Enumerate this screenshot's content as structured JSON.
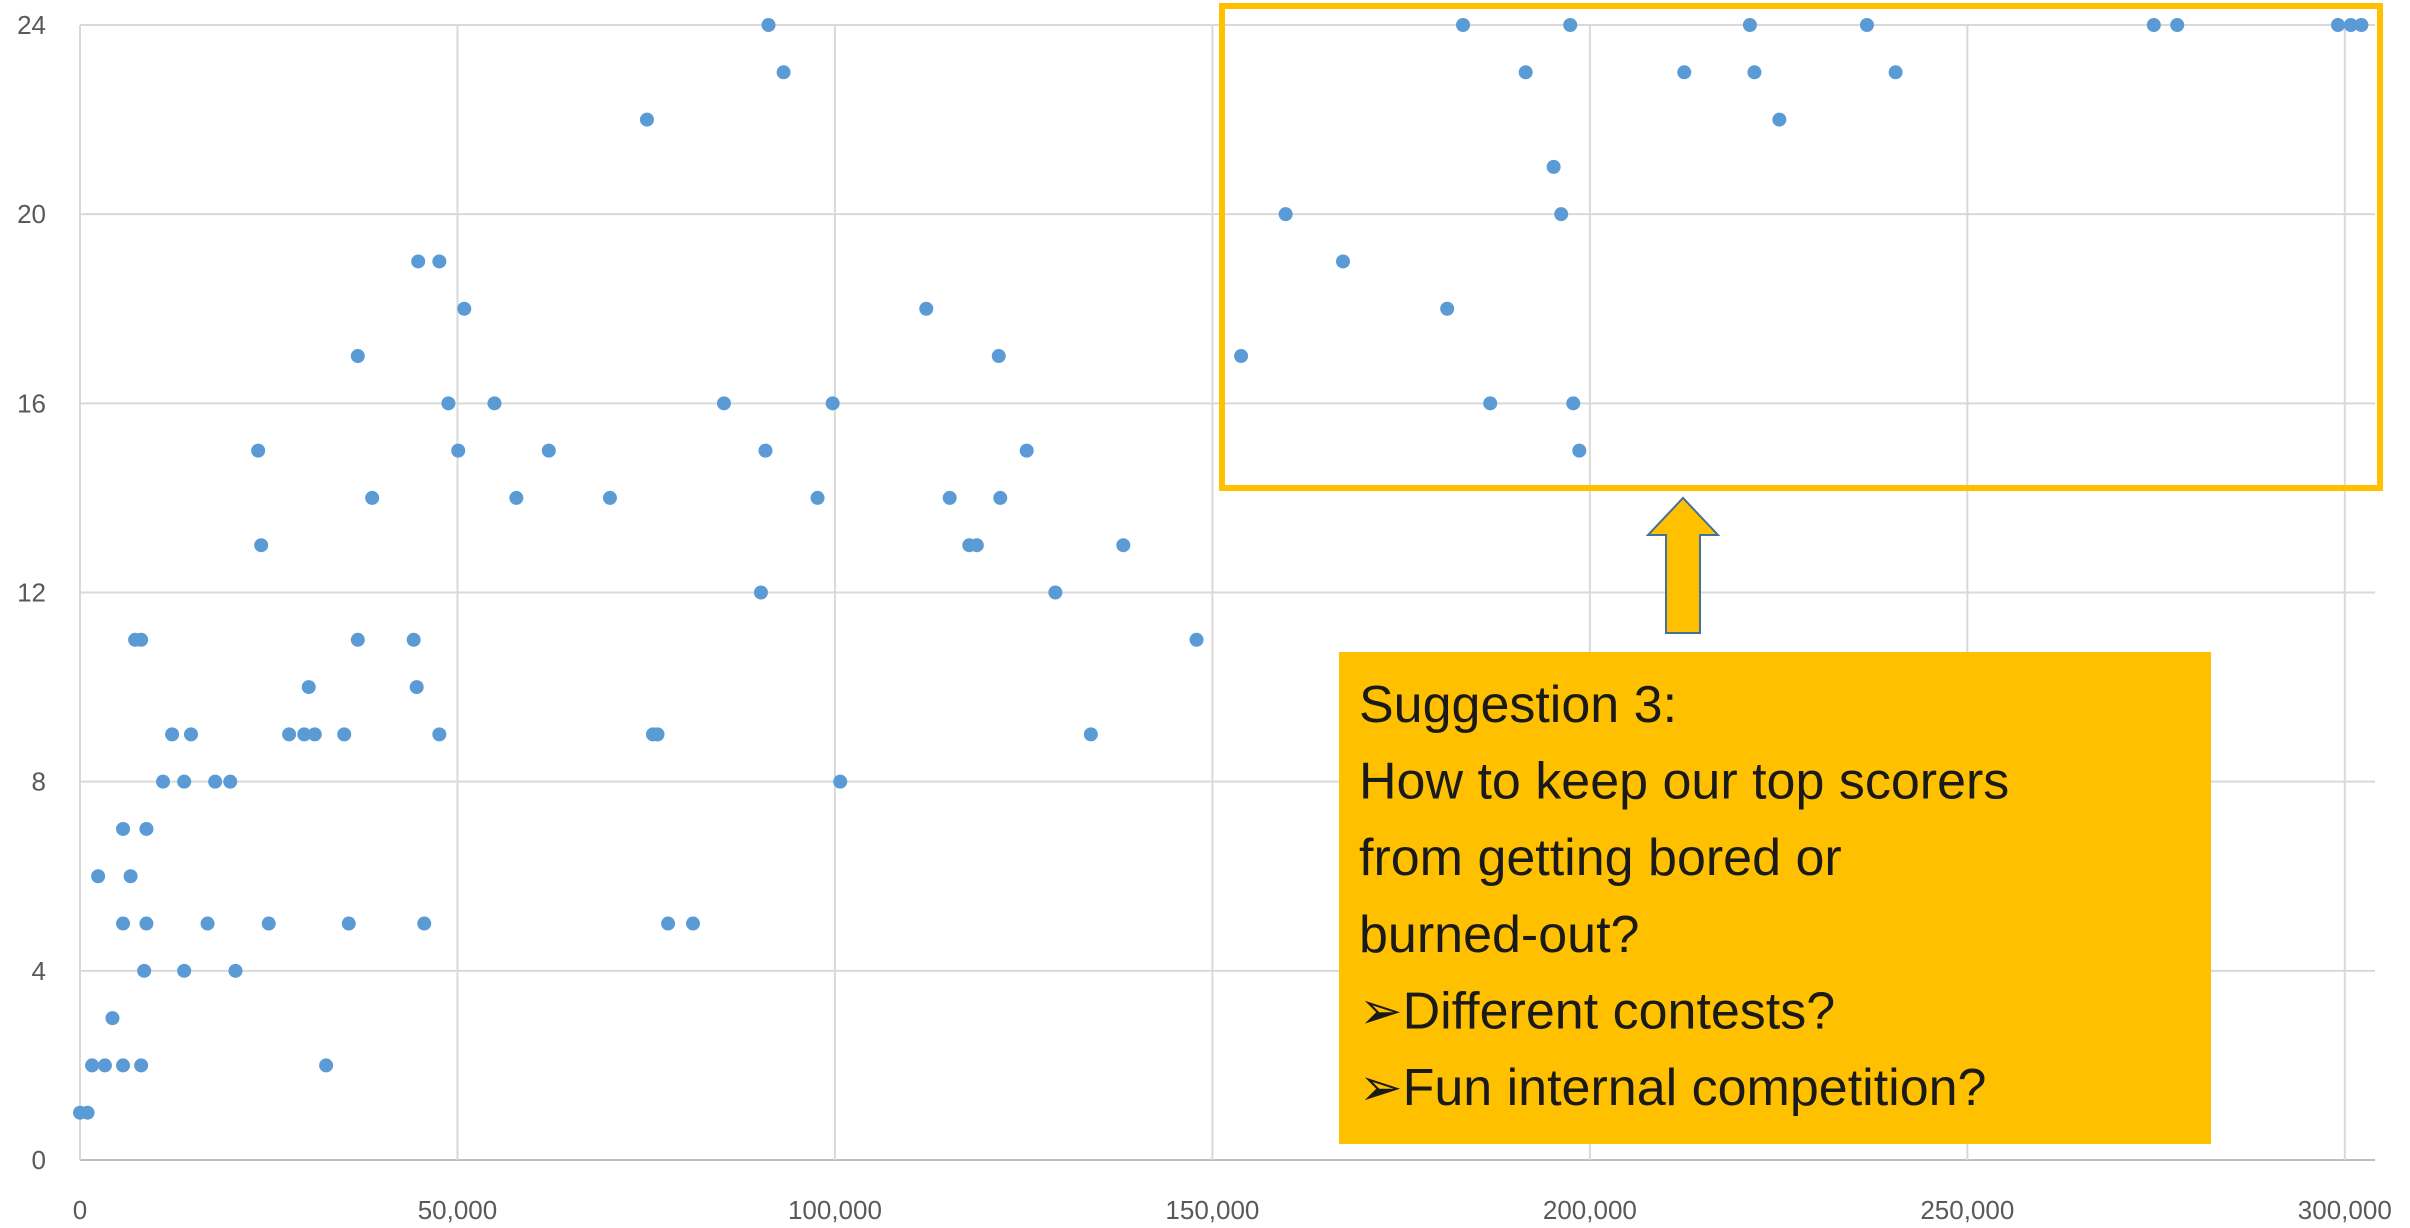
{
  "chart_data": {
    "type": "scatter",
    "color": "#5b9bd5",
    "grid": true,
    "x": [
      0,
      1000,
      1600,
      2400,
      3300,
      4300,
      5700,
      5700,
      5700,
      6700,
      7300,
      8100,
      8100,
      8500,
      8800,
      8800,
      11000,
      12200,
      13800,
      13800,
      14700,
      16900,
      17900,
      19900,
      20600,
      23600,
      24000,
      25000,
      27700,
      29700,
      30300,
      31100,
      32600,
      35000,
      35600,
      36800,
      36800,
      38700,
      44200,
      44600,
      44800,
      45600,
      47600,
      47600,
      48800,
      50100,
      50900,
      54900,
      57800,
      62100,
      70200,
      75100,
      75900,
      76500,
      77900,
      81200,
      85300,
      90200,
      90800,
      91200,
      93200,
      97700,
      99700,
      100700,
      112100,
      115200,
      117800,
      118800,
      121700,
      121900,
      125400,
      129200,
      133900,
      138200,
      147900,
      153800,
      159700,
      167300,
      181100,
      183200,
      186800,
      191500,
      195200,
      196200,
      197400,
      197800,
      198600,
      212500,
      221200,
      221800,
      225100,
      236700,
      240500,
      274700,
      277800,
      299100,
      300800,
      302200
    ],
    "values": [
      1,
      1,
      2,
      6,
      2,
      3,
      7,
      5,
      2,
      6,
      11,
      11,
      2,
      4,
      7,
      5,
      8,
      9,
      4,
      8,
      9,
      5,
      8,
      8,
      4,
      15,
      13,
      5,
      9,
      9,
      10,
      9,
      2,
      9,
      5,
      17,
      11,
      14,
      11,
      10,
      19,
      5,
      19,
      9,
      16,
      15,
      18,
      16,
      14,
      15,
      14,
      22,
      9,
      9,
      5,
      5,
      16,
      12,
      15,
      24,
      23,
      14,
      16,
      8,
      18,
      14,
      13,
      13,
      17,
      14,
      15,
      12,
      9,
      13,
      11,
      17,
      20,
      19,
      18,
      24,
      16,
      23,
      21,
      20,
      24,
      16,
      15,
      23,
      24,
      23,
      22,
      24,
      23,
      24,
      24,
      24,
      24,
      24
    ],
    "xlim": [
      0,
      304000
    ],
    "ylim": [
      0,
      24
    ],
    "xticks": [
      0,
      {
        "value": 50000,
        "label": "50,000"
      },
      {
        "value": 100000,
        "label": "100,000"
      },
      {
        "value": 150000,
        "label": "150,000"
      },
      {
        "value": 200000,
        "label": "200,000"
      },
      {
        "value": 250000,
        "label": "250,000"
      },
      {
        "value": 300000,
        "label": "300,000"
      }
    ],
    "yticks": [
      0,
      4,
      8,
      12,
      16,
      20,
      24
    ],
    "annotation": {
      "color": "#ffc000",
      "lines": [
        "Suggestion 3:",
        "How to keep our top scorers",
        "from getting bored or",
        "burned-out?",
        "➢Different contests?",
        "➢Fun internal competition?"
      ]
    }
  }
}
